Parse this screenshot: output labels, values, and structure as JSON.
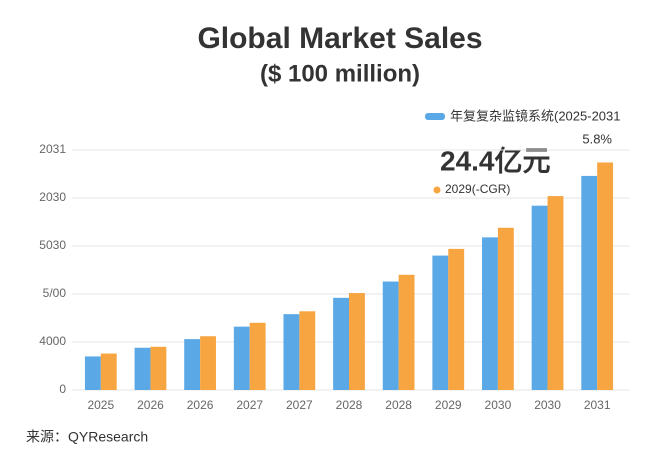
{
  "chart_data": {
    "type": "bar",
    "title": "Global Market Sales",
    "subtitle": "($ 100 million)",
    "annotations": [
      "24.4亿元",
      "5.8%"
    ],
    "source": "来源：QYResearch",
    "categories": [
      "2025",
      "2026",
      "2026",
      "2027",
      "2027",
      "2028",
      "2028",
      "2029",
      "2030",
      "2030",
      "2031"
    ],
    "series": [
      {
        "name": "年复复杂监镜系统(2025-2031",
        "color": "#5aa9e6",
        "values": [
          35,
          44,
          53,
          66,
          79,
          96,
          113,
          140,
          159,
          192,
          223
        ]
      },
      {
        "name": "2029(-CGR)",
        "color": "#f7a541",
        "values": [
          38,
          45,
          56,
          70,
          82,
          101,
          120,
          147,
          169,
          202,
          237
        ]
      }
    ],
    "ylim": [
      0,
      250
    ],
    "yticks": [
      0,
      {
        "value": 50,
        "label": "4000"
      },
      {
        "value": 100,
        "label": "5/00"
      },
      {
        "value": 150,
        "label": "5030"
      },
      {
        "value": 200,
        "label": "2030"
      },
      {
        "value": 250,
        "label": "2031"
      }
    ],
    "grid": true
  }
}
